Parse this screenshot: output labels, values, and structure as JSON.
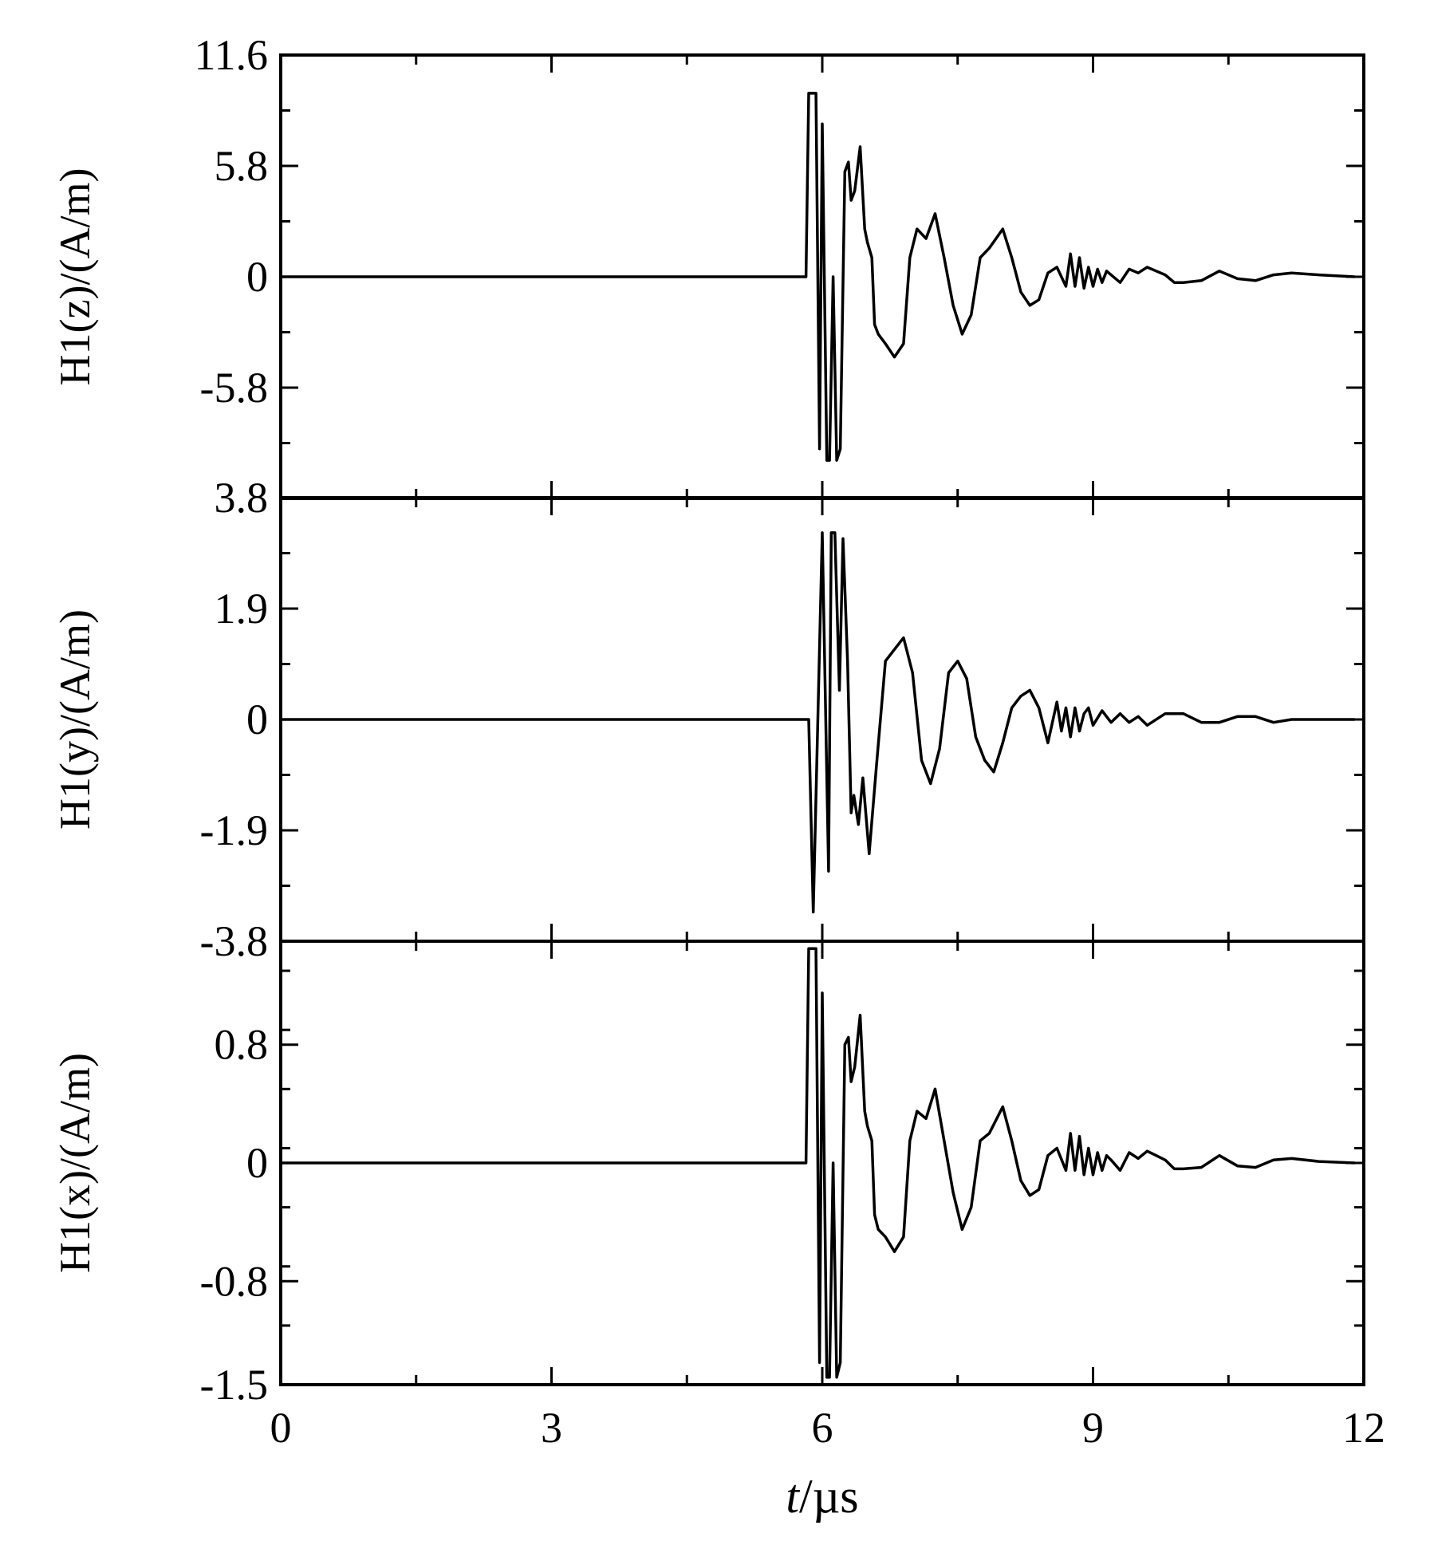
{
  "chart_data": {
    "type": "line",
    "layout": "stacked-panels-shared-x",
    "grid": false,
    "legend": "none",
    "xlabel": {
      "italic": "t",
      "rest": "/µs"
    },
    "xlim": [
      0,
      12
    ],
    "xticks": [
      "0",
      "3",
      "6",
      "9",
      "12"
    ],
    "color": "#000000",
    "panels": [
      {
        "name": "H1(z)",
        "ylabel": "H1(z)/(A/m)",
        "ylim": [
          -11.6,
          11.6
        ],
        "ytick_values": [
          11.6,
          5.8,
          0,
          -5.8
        ],
        "ytick_labels": [
          "11.6",
          "5.8",
          "0",
          "-5.8"
        ],
        "clip": [
          -9.6,
          9.6
        ],
        "x": [
          0,
          5.7,
          5.82,
          5.85,
          5.93,
          5.97,
          6.0,
          6.05,
          6.08,
          6.12,
          6.16,
          6.2,
          6.25,
          6.29,
          6.32,
          6.36,
          6.42,
          6.47,
          6.5,
          6.55,
          6.58,
          6.62,
          6.7,
          6.8,
          6.9,
          6.97,
          7.05,
          7.15,
          7.25,
          7.35,
          7.45,
          7.55,
          7.65,
          7.75,
          7.85,
          8.0,
          8.1,
          8.2,
          8.3,
          8.4,
          8.5,
          8.6,
          8.7,
          8.75,
          8.8,
          8.85,
          8.9,
          8.95,
          9.0,
          9.05,
          9.1,
          9.15,
          9.2,
          9.3,
          9.4,
          9.5,
          9.6,
          9.7,
          9.8,
          9.9,
          10.0,
          10.2,
          10.4,
          10.6,
          10.8,
          11.0,
          11.2,
          11.5,
          11.9
        ],
        "y": [
          0,
          0,
          0,
          9.6,
          9.6,
          -9.0,
          8.0,
          -9.6,
          -9.6,
          0,
          -9.6,
          -9.0,
          5.5,
          6.0,
          4.0,
          4.5,
          6.8,
          2.5,
          1.8,
          1.0,
          -2.5,
          -3.0,
          -3.5,
          -4.2,
          -3.5,
          1.0,
          2.5,
          2.0,
          3.3,
          1.0,
          -1.5,
          -3.0,
          -2.0,
          1.0,
          1.5,
          2.5,
          1.0,
          -0.8,
          -1.5,
          -1.2,
          0.2,
          0.5,
          -0.5,
          1.2,
          -0.5,
          1.0,
          -0.6,
          0.5,
          -0.5,
          0.4,
          -0.3,
          0.3,
          0.1,
          -0.3,
          0.4,
          0.2,
          0.5,
          0.3,
          0.1,
          -0.3,
          -0.3,
          -0.2,
          0.3,
          -0.1,
          -0.2,
          0.1,
          0.2,
          0.1,
          0
        ]
      },
      {
        "name": "H1(y)",
        "ylabel": "H1(y)/(A/m)",
        "ylim": [
          -3.8,
          3.8
        ],
        "ytick_values": [
          3.8,
          1.9,
          0,
          -1.9,
          -3.8
        ],
        "ytick_labels": [
          "3.8",
          "1.9",
          "0",
          "-1.9",
          "-3.8"
        ],
        "clip": [
          -3.3,
          3.2
        ],
        "x": [
          0,
          5.7,
          5.85,
          5.9,
          6.0,
          6.07,
          6.1,
          6.14,
          6.19,
          6.23,
          6.28,
          6.32,
          6.35,
          6.4,
          6.45,
          6.52,
          6.6,
          6.7,
          6.8,
          6.9,
          7.0,
          7.1,
          7.2,
          7.3,
          7.4,
          7.5,
          7.6,
          7.7,
          7.8,
          7.9,
          8.0,
          8.1,
          8.2,
          8.3,
          8.4,
          8.5,
          8.6,
          8.65,
          8.7,
          8.75,
          8.8,
          8.85,
          8.9,
          8.95,
          9.0,
          9.1,
          9.2,
          9.3,
          9.4,
          9.5,
          9.6,
          9.8,
          10.0,
          10.2,
          10.4,
          10.6,
          10.8,
          11.0,
          11.2,
          11.5,
          11.9
        ],
        "y": [
          0,
          0,
          0,
          -3.3,
          3.2,
          -2.6,
          3.2,
          3.2,
          0.5,
          3.1,
          1.0,
          -1.6,
          -1.3,
          -1.8,
          -1.0,
          -2.3,
          -0.8,
          1.0,
          1.2,
          1.4,
          0.8,
          -0.7,
          -1.1,
          -0.5,
          0.8,
          1.0,
          0.7,
          -0.3,
          -0.7,
          -0.9,
          -0.4,
          0.2,
          0.4,
          0.5,
          0.2,
          -0.4,
          0.3,
          -0.2,
          0.2,
          -0.3,
          0.2,
          -0.2,
          0.1,
          0.2,
          -0.1,
          0.15,
          -0.05,
          0.1,
          -0.05,
          0.05,
          -0.1,
          0.1,
          0.1,
          -0.05,
          -0.05,
          0.05,
          0.05,
          -0.05,
          0,
          0,
          0
        ]
      },
      {
        "name": "H1(x)",
        "ylabel": "H1(x)/(A/m)",
        "ylim": [
          -1.5,
          1.5
        ],
        "ytick_values": [
          0.8,
          0,
          -0.8,
          -1.5
        ],
        "ytick_labels": [
          "0.8",
          "0",
          "-0.8",
          "-1.5"
        ],
        "clip": [
          -1.45,
          1.45
        ],
        "x": [
          0,
          5.7,
          5.82,
          5.85,
          5.93,
          5.97,
          6.0,
          6.05,
          6.08,
          6.12,
          6.16,
          6.2,
          6.25,
          6.29,
          6.32,
          6.36,
          6.42,
          6.47,
          6.5,
          6.55,
          6.58,
          6.62,
          6.7,
          6.8,
          6.9,
          6.97,
          7.05,
          7.15,
          7.25,
          7.35,
          7.45,
          7.55,
          7.65,
          7.75,
          7.85,
          8.0,
          8.1,
          8.2,
          8.3,
          8.4,
          8.5,
          8.6,
          8.7,
          8.75,
          8.8,
          8.85,
          8.9,
          8.95,
          9.0,
          9.05,
          9.1,
          9.15,
          9.2,
          9.3,
          9.4,
          9.5,
          9.6,
          9.7,
          9.8,
          9.9,
          10.0,
          10.2,
          10.4,
          10.6,
          10.8,
          11.0,
          11.2,
          11.5,
          11.9
        ],
        "y": [
          0,
          0,
          0,
          1.45,
          1.45,
          -1.35,
          1.15,
          -1.45,
          -1.45,
          0,
          -1.45,
          -1.35,
          0.8,
          0.85,
          0.55,
          0.65,
          1.0,
          0.35,
          0.25,
          0.15,
          -0.35,
          -0.45,
          -0.5,
          -0.6,
          -0.5,
          0.15,
          0.35,
          0.3,
          0.5,
          0.15,
          -0.2,
          -0.45,
          -0.3,
          0.15,
          0.2,
          0.38,
          0.15,
          -0.12,
          -0.22,
          -0.18,
          0.05,
          0.1,
          -0.05,
          0.2,
          -0.05,
          0.18,
          -0.08,
          0.1,
          -0.08,
          0.07,
          -0.05,
          0.05,
          0.02,
          -0.05,
          0.07,
          0.03,
          0.08,
          0.05,
          0.02,
          -0.04,
          -0.04,
          -0.03,
          0.05,
          -0.02,
          -0.03,
          0.02,
          0.03,
          0.01,
          0
        ]
      }
    ]
  }
}
